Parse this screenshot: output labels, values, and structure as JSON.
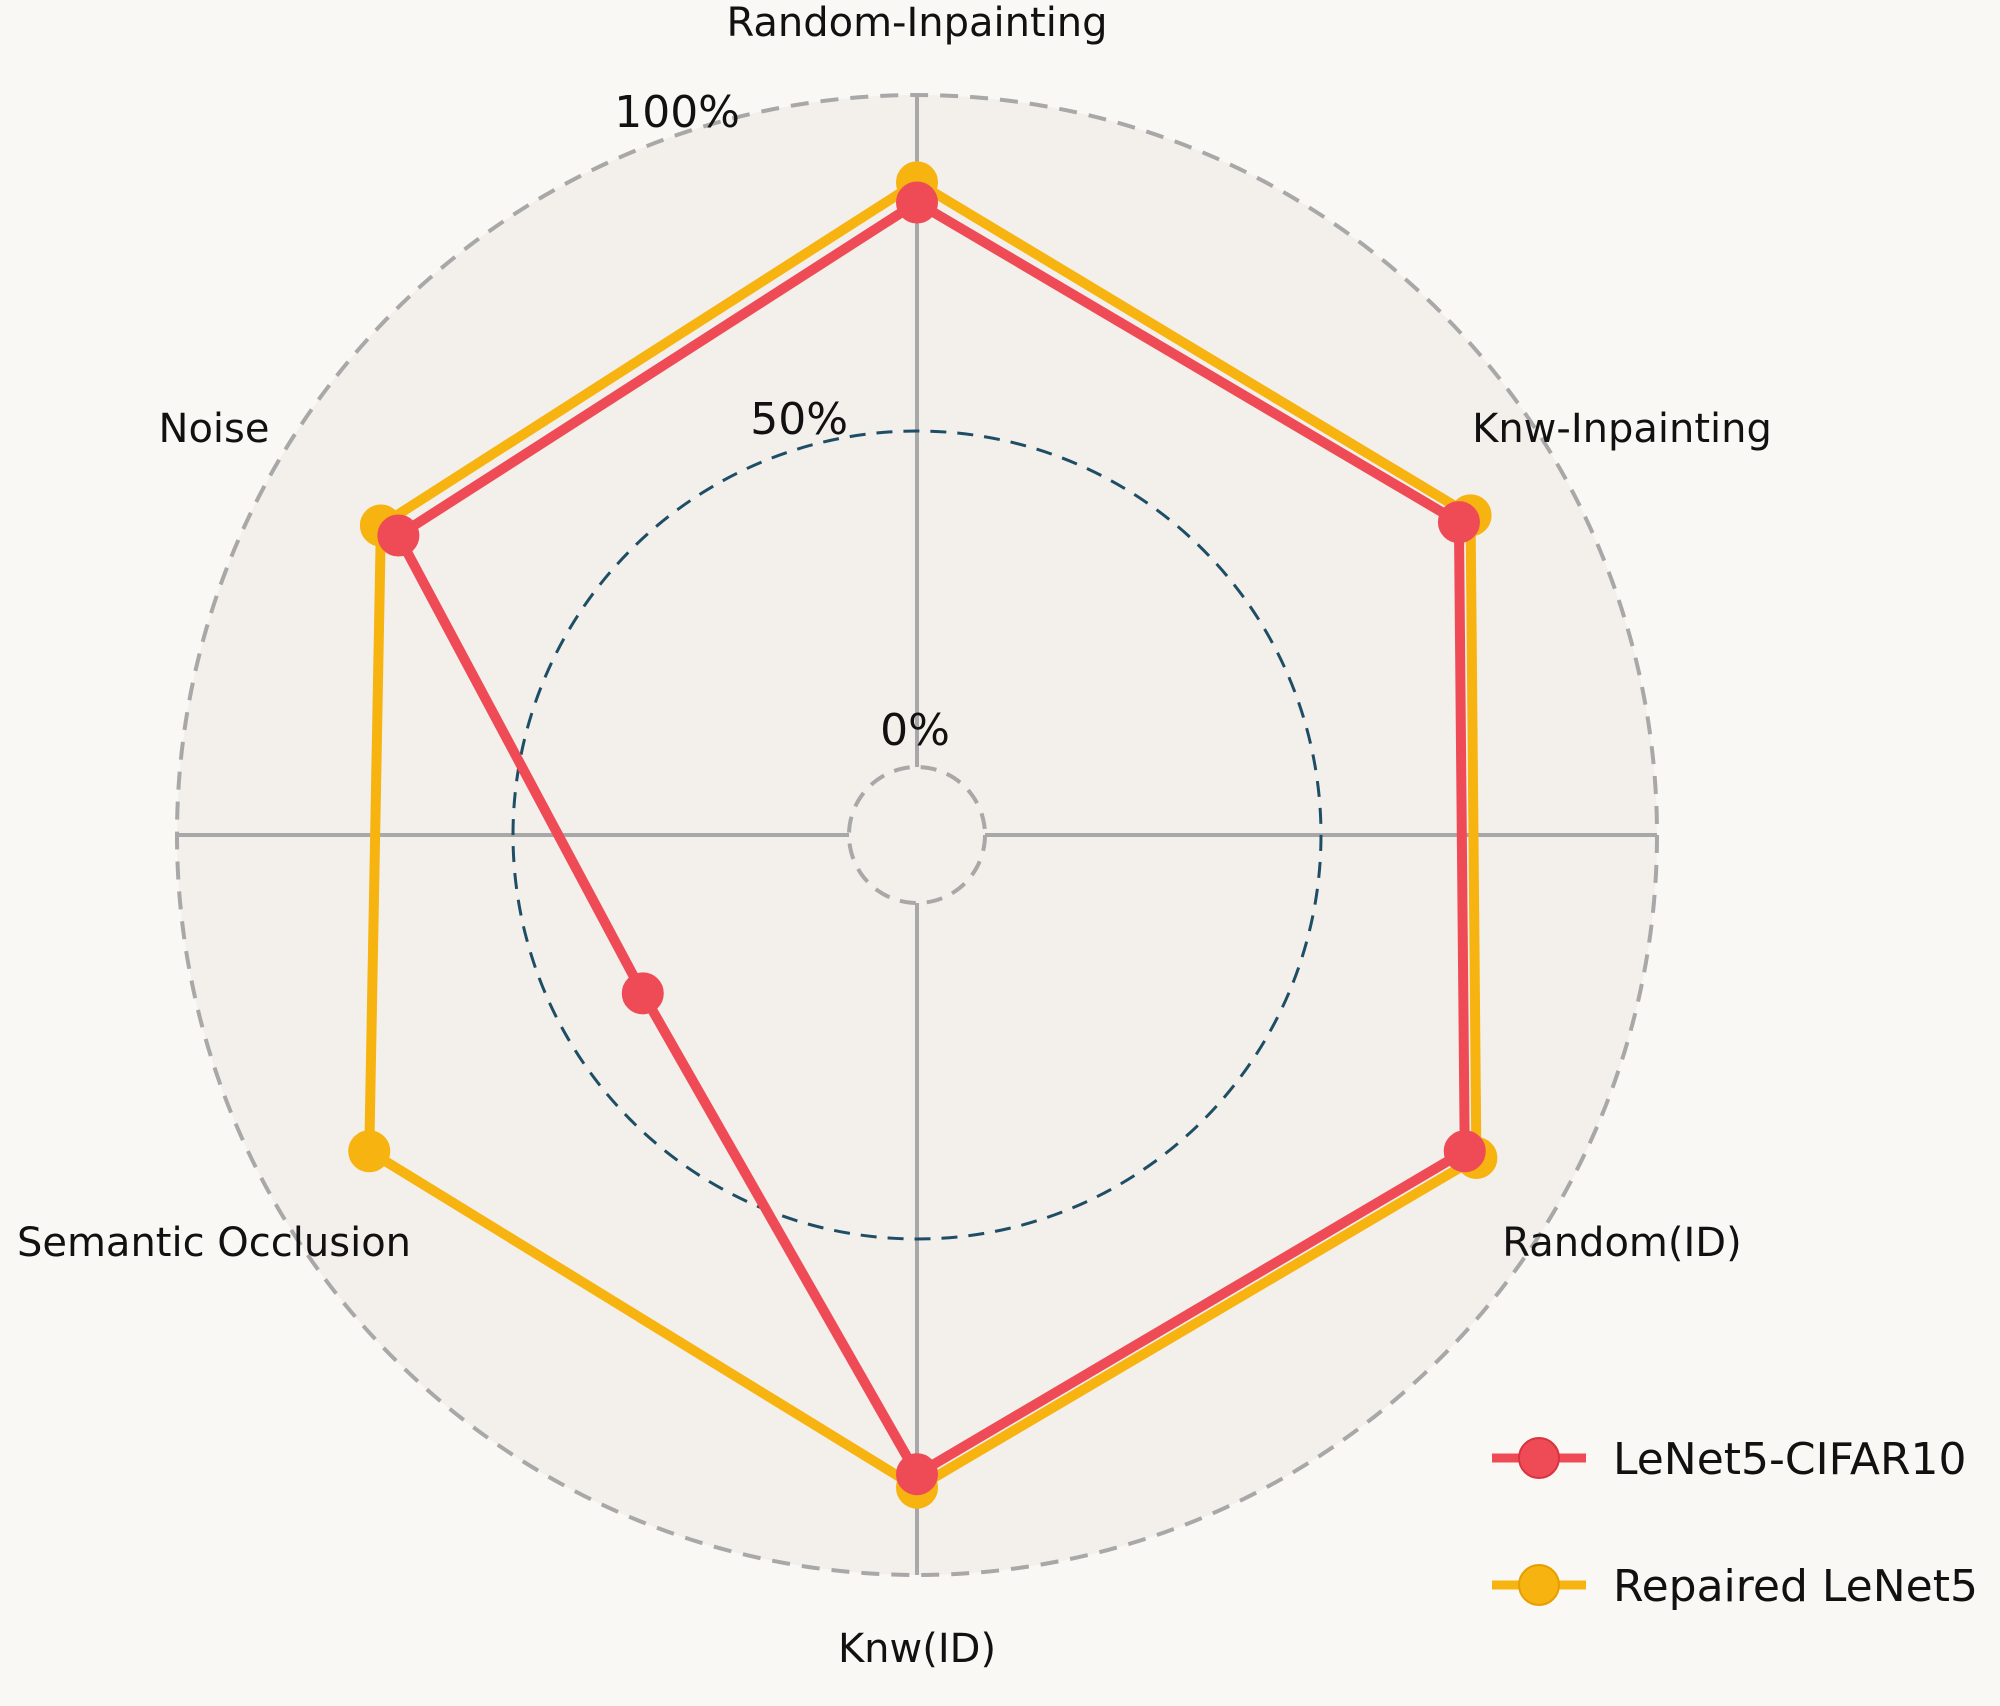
{
  "chart_data": {
    "type": "radar",
    "axes": [
      "Random-Inpainting",
      "Knw-Inpainting",
      "Random(ID)",
      "Knw(ID)",
      "Semantic Occlusion",
      "Noise"
    ],
    "ring_labels": [
      "100%",
      "50%",
      "0%"
    ],
    "rlim": [
      0,
      100
    ],
    "series": [
      {
        "name": "LeNet5-CIFAR10",
        "values": [
          84,
          83,
          84,
          85,
          37,
          79
        ]
      },
      {
        "name": "Repaired LeNet5",
        "values": [
          87,
          85,
          86,
          87,
          84,
          82
        ]
      }
    ],
    "colors": {
      "LeNet5-CIFAR10": "#ee4b57",
      "Repaired LeNet5": "#f7b30f",
      "plot_background": "#f3efea",
      "page_background": "#faf8f4",
      "outer_ring": "#a8a8a8",
      "mid_ring": "#1d4e66",
      "spoke": "#a8a8a8"
    },
    "legend_position": "bottom-right",
    "grid": true
  }
}
